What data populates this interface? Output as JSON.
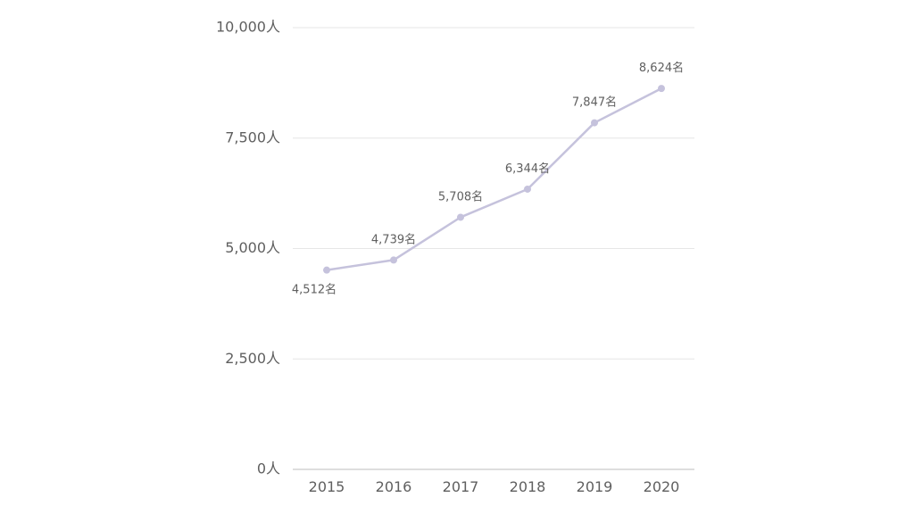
{
  "chart_data": {
    "type": "line",
    "title": "",
    "xlabel": "",
    "ylabel": "",
    "x": [
      "2015",
      "2016",
      "2017",
      "2018",
      "2019",
      "2020"
    ],
    "series": [
      {
        "values": [
          4512,
          4739,
          5708,
          6344,
          7847,
          8624
        ],
        "data_labels": [
          "4,512名",
          "4,739名",
          "5,708名",
          "6,344名",
          "7,847名",
          "8,624名"
        ]
      }
    ],
    "ylim": [
      0,
      10000
    ],
    "y_ticks": [
      0,
      2500,
      5000,
      7500,
      10000
    ],
    "y_tick_labels": [
      "0人",
      "2,500人",
      "5,000人",
      "7,500人",
      "10,000人"
    ],
    "grid": true,
    "legend": "none",
    "colors": {
      "line": "#c5c2dc",
      "marker": "#c5c2dc"
    }
  }
}
